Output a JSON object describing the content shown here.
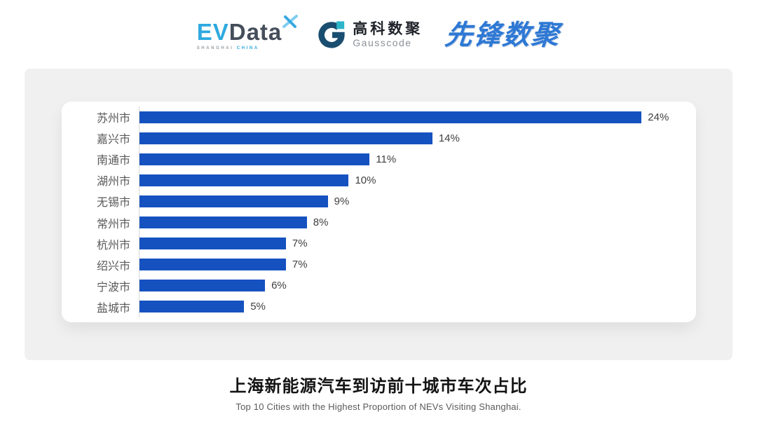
{
  "header": {
    "evdata": {
      "ev": "EV",
      "data": "Data",
      "sub_shanghai": "SHANGHAI",
      "sub_china": "CHINA"
    },
    "gausscode": {
      "cn": "高科数聚",
      "en": "Gausscode"
    },
    "xianfeng": {
      "text": "先锋数聚"
    }
  },
  "chart_data": {
    "type": "bar",
    "orientation": "horizontal",
    "title": "上海新能源汽车到访前十城市车次占比",
    "subtitle": "Top 10 Cities with the Highest Proportion of  NEVs Visiting Shanghai.",
    "categories": [
      "苏州市",
      "嘉兴市",
      "南通市",
      "湖州市",
      "无锡市",
      "常州市",
      "杭州市",
      "绍兴市",
      "宁波市",
      "盐城市"
    ],
    "values": [
      24,
      14,
      11,
      10,
      9,
      8,
      7,
      7,
      6,
      5
    ],
    "value_labels": [
      "24%",
      "14%",
      "11%",
      "10%",
      "9%",
      "8%",
      "7%",
      "7%",
      "6%",
      "5%"
    ],
    "unit": "%",
    "xlim": [
      0,
      26
    ],
    "grid": false,
    "legend": false,
    "bar_color": "#1552c0",
    "category_label_color": "#595959",
    "value_label_color": "#404040",
    "axis_line_color": "#d9d9d9"
  }
}
